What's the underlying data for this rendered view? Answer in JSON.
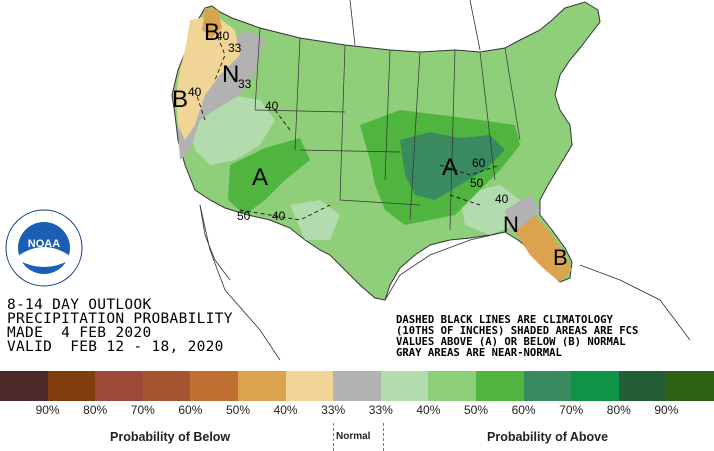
{
  "title": {
    "line1": "8-14 DAY OUTLOOK",
    "line2": "PRECIPITATION PROBABILITY",
    "line3": "MADE  4 FEB 2020",
    "line4": "VALID  FEB 12 - 18, 2020"
  },
  "note": {
    "line1": "DASHED BLACK LINES ARE CLIMATOLOGY",
    "line2": "(10THS OF INCHES) SHADED AREAS ARE FCS",
    "line3": "VALUES ABOVE (A) OR BELOW (B) NORMAL",
    "line4": "GRAY AREAS ARE NEAR-NORMAL"
  },
  "map_labels": {
    "B_nw": "B",
    "B_ca": "B",
    "N_nw": "N",
    "A_sw": "A",
    "A_ov": "A",
    "N_se": "N",
    "B_fl": "B",
    "c40a": "40",
    "c33a": "33",
    "c33b": "33",
    "c40b": "40",
    "c40c": "40",
    "c50a": "50",
    "c40d": "40",
    "c60": "60",
    "c50b": "50",
    "c40e": "40"
  },
  "logo_text": "NOAA",
  "legend": {
    "colors": [
      "#4e2a2a",
      "#7f3d0e",
      "#9d4a3a",
      "#a5552f",
      "#c06f32",
      "#dba34e",
      "#f1d597",
      "#b2b2b2",
      "#b3dcae",
      "#8fcf7a",
      "#4fb53e",
      "#3a8a5f",
      "#0f9346",
      "#245e38",
      "#2e6116"
    ],
    "percents": [
      "90%",
      "80%",
      "70%",
      "60%",
      "50%",
      "40%",
      "33%",
      "33%",
      "40%",
      "50%",
      "60%",
      "70%",
      "80%",
      "90%"
    ],
    "below_label": "Probability of Below",
    "normal_label": "Normal",
    "above_label": "Probability of Above"
  }
}
